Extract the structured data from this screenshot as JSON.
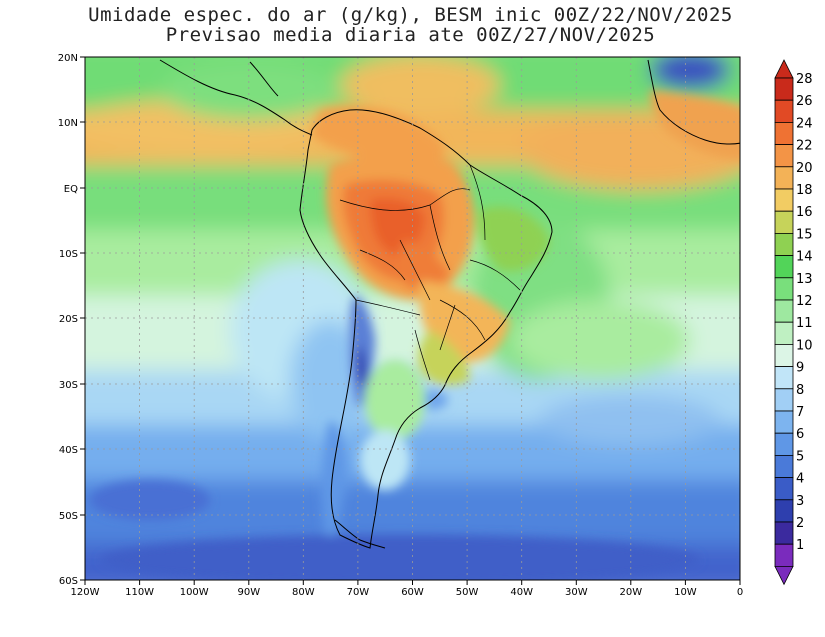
{
  "title": {
    "line1": "Umidade espec. do ar (g/kg), BESM inic 00Z/22/NOV/2025",
    "line2": "Previsao media diaria ate 00Z/27/NOV/2025"
  },
  "lat_labels": [
    "20N",
    "10N",
    "EQ",
    "10S",
    "20S",
    "30S",
    "40S",
    "50S",
    "60S"
  ],
  "lon_labels": [
    "120W",
    "110W",
    "100W",
    "90W",
    "80W",
    "70W",
    "60W",
    "50W",
    "40W",
    "30W",
    "20W",
    "10W",
    "0"
  ],
  "colorbar": {
    "labels": [
      "1",
      "2",
      "3",
      "4",
      "5",
      "6",
      "7",
      "8",
      "9",
      "10",
      "11",
      "12",
      "13",
      "14",
      "15",
      "16",
      "18",
      "20",
      "22",
      "24",
      "26",
      "28"
    ],
    "colors": [
      "#7a2bbd",
      "#3b2a9e",
      "#2e3fae",
      "#3a5cc7",
      "#4a7ad9",
      "#5f97e6",
      "#7db4ef",
      "#a1cff5",
      "#c1e5f8",
      "#dcf5e6",
      "#bff0c2",
      "#9ee8a0",
      "#79df7c",
      "#52d459",
      "#8fd152",
      "#c6d35a",
      "#f2cc63",
      "#f3b257",
      "#f39446",
      "#ef7233",
      "#e14a25",
      "#c92a1b"
    ]
  },
  "map_regions": [
    {
      "name": "continental-core-humidity",
      "value": "22-24"
    },
    {
      "name": "equatorial-atlantic-humidity",
      "value": "18-20"
    },
    {
      "name": "andes-dry-region",
      "value": "3-6"
    },
    {
      "name": "southern-ocean-dry-region",
      "value": "4-7"
    }
  ]
}
